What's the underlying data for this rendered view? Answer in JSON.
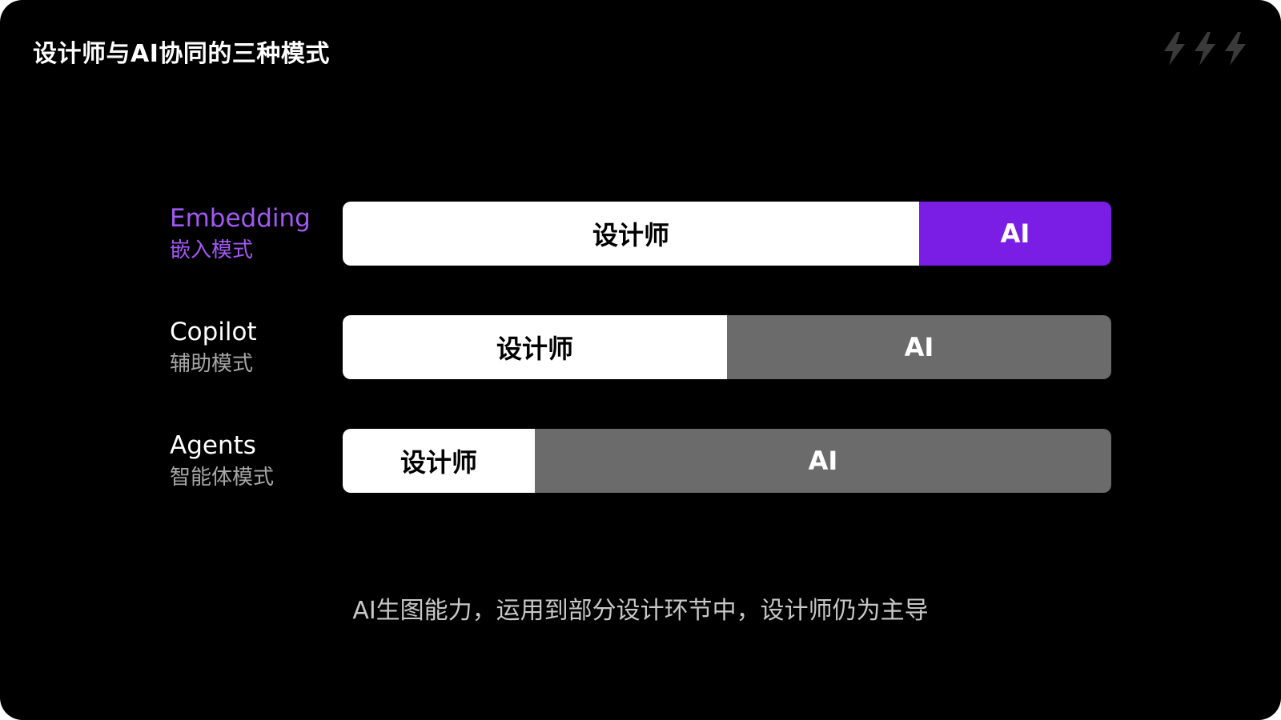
{
  "title": "设计师与AI协同的三种模式",
  "colors": {
    "background": "#000000",
    "highlight_text": "#a259f3",
    "highlight_ai": "#7a1ee6",
    "ai_default": "#6b6b6b",
    "designer": "#ffffff",
    "bolt": "#3a3a3a"
  },
  "decoration_icons": [
    "lightning-icon",
    "lightning-icon",
    "lightning-icon"
  ],
  "modes": [
    {
      "name_en": "Embedding",
      "name_zh": "嵌入模式",
      "highlighted": true,
      "designer_label": "设计师",
      "ai_label": "AI",
      "designer_share": 0.75,
      "ai_share": 0.25
    },
    {
      "name_en": "Copilot",
      "name_zh": "辅助模式",
      "highlighted": false,
      "designer_label": "设计师",
      "ai_label": "AI",
      "designer_share": 0.5,
      "ai_share": 0.5
    },
    {
      "name_en": "Agents",
      "name_zh": "智能体模式",
      "highlighted": false,
      "designer_label": "设计师",
      "ai_label": "AI",
      "designer_share": 0.25,
      "ai_share": 0.75
    }
  ],
  "caption": "AI生图能力，运用到部分设计环节中，设计师仍为主导"
}
